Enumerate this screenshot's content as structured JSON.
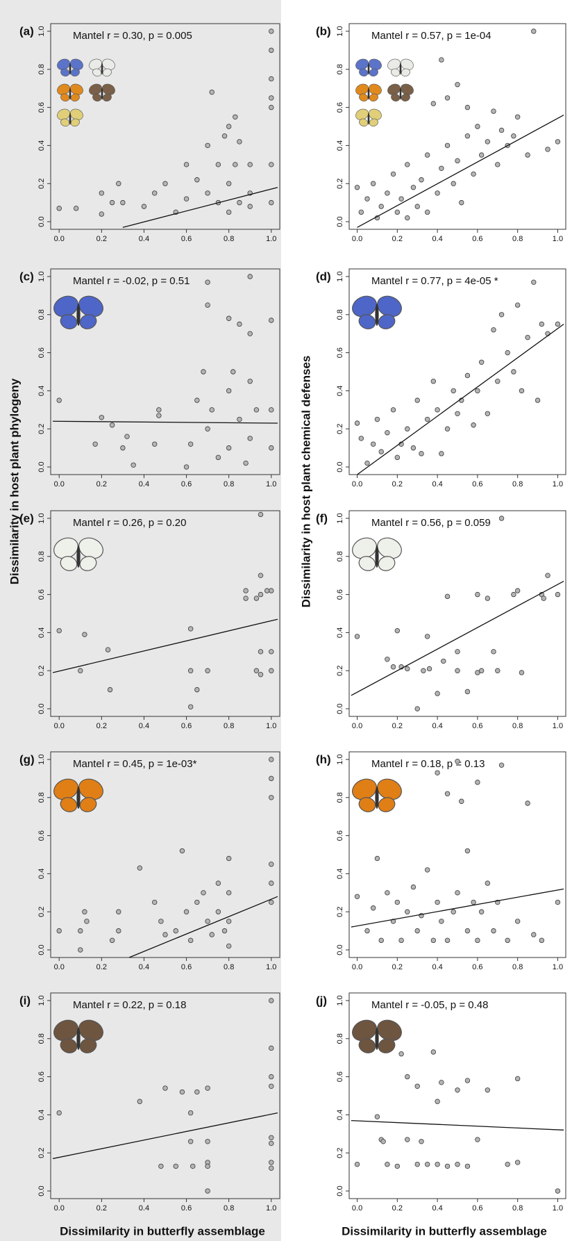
{
  "labels": {
    "y_left": "Dissimilarity in host plant phylogeny",
    "y_right": "Dissimilarity in host plant chemical defenses",
    "x_left": "Dissimilarity in butterfly assemblage",
    "x_right": "Dissimilarity in butterfly assemblage"
  },
  "chart_data": [
    {
      "type": "scatter",
      "panel": "(a)",
      "annotation": "Mantel r = 0.30, p = 0.005",
      "color": "#b5b5b5",
      "x": [
        0,
        0.08,
        0.2,
        0.2,
        0.25,
        0.28,
        0.3,
        0.4,
        0.45,
        0.5,
        0.55,
        0.6,
        0.6,
        0.65,
        0.7,
        0.7,
        0.72,
        0.75,
        0.75,
        0.78,
        0.8,
        0.8,
        0.8,
        0.83,
        0.83,
        0.85,
        0.85,
        0.9,
        0.9,
        1,
        1,
        1,
        1,
        1,
        1,
        1,
        0.9
      ],
      "y": [
        0.07,
        0.07,
        0.15,
        0.04,
        0.1,
        0.2,
        0.1,
        0.08,
        0.15,
        0.2,
        0.05,
        0.3,
        0.12,
        0.22,
        0.4,
        0.15,
        0.68,
        0.3,
        0.1,
        0.45,
        0.5,
        0.2,
        0.05,
        0.55,
        0.3,
        0.42,
        0.1,
        0.3,
        0.15,
        1.0,
        0.9,
        0.75,
        0.65,
        0.6,
        0.3,
        0.1,
        0.08
      ],
      "fit": {
        "x": [
          0.3,
          1.03
        ],
        "y": [
          -0.03,
          0.18
        ]
      }
    },
    {
      "type": "scatter",
      "panel": "(b)",
      "annotation": "Mantel r = 0.57, p = 1e-04",
      "color": "#b5b5b5",
      "x": [
        0,
        0.02,
        0.05,
        0.08,
        0.1,
        0.12,
        0.15,
        0.18,
        0.2,
        0.22,
        0.25,
        0.28,
        0.3,
        0.32,
        0.35,
        0.38,
        0.4,
        0.42,
        0.45,
        0.45,
        0.48,
        0.5,
        0.5,
        0.52,
        0.55,
        0.55,
        0.58,
        0.6,
        0.62,
        0.65,
        0.68,
        0.7,
        0.72,
        0.75,
        0.78,
        0.8,
        0.85,
        0.88,
        0.42,
        0.95,
        1.0,
        0.35,
        0.25
      ],
      "y": [
        0.18,
        0.05,
        0.12,
        0.2,
        0.02,
        0.08,
        0.15,
        0.25,
        0.05,
        0.12,
        0.3,
        0.18,
        0.08,
        0.22,
        0.35,
        0.62,
        0.15,
        0.28,
        0.65,
        0.4,
        0.2,
        0.72,
        0.32,
        0.1,
        0.6,
        0.45,
        0.25,
        0.5,
        0.35,
        0.42,
        0.58,
        0.3,
        0.48,
        0.4,
        0.45,
        0.55,
        0.35,
        1.0,
        0.85,
        0.38,
        0.42,
        0.05,
        0.02
      ],
      "fit": {
        "x": [
          0.0,
          1.03
        ],
        "y": [
          -0.03,
          0.56
        ]
      }
    },
    {
      "type": "scatter",
      "panel": "(c)",
      "annotation": "Mantel r = -0.02, p = 0.51",
      "color": "#b5b5b5",
      "x": [
        0,
        0.17,
        0.2,
        0.25,
        0.3,
        0.32,
        0.35,
        0.45,
        0.47,
        0.47,
        0.6,
        0.62,
        0.65,
        0.68,
        0.7,
        0.7,
        0.7,
        0.72,
        0.75,
        0.8,
        0.8,
        0.8,
        0.82,
        0.85,
        0.85,
        0.88,
        0.9,
        0.9,
        0.9,
        0.9,
        0.93,
        1.0,
        1.0,
        1.0
      ],
      "y": [
        0.35,
        0.12,
        0.26,
        0.22,
        0.1,
        0.16,
        0.01,
        0.12,
        0.3,
        0.27,
        0.0,
        0.12,
        0.35,
        0.5,
        0.97,
        0.85,
        0.2,
        0.3,
        0.05,
        0.78,
        0.4,
        0.1,
        0.5,
        0.75,
        0.25,
        0.02,
        1.0,
        0.7,
        0.45,
        0.15,
        0.3,
        0.77,
        0.3,
        0.1
      ],
      "fit": {
        "x": [
          -0.03,
          1.03
        ],
        "y": [
          0.24,
          0.23
        ]
      }
    },
    {
      "type": "scatter",
      "panel": "(d)",
      "annotation": "Mantel r = 0.77, p = 4e-05 *",
      "color": "#b5b5b5",
      "x": [
        0,
        0.02,
        0.05,
        0.08,
        0.1,
        0.12,
        0.15,
        0.18,
        0.2,
        0.22,
        0.25,
        0.28,
        0.3,
        0.32,
        0.35,
        0.38,
        0.4,
        0.42,
        0.45,
        0.48,
        0.5,
        0.52,
        0.55,
        0.58,
        0.6,
        0.62,
        0.65,
        0.68,
        0.7,
        0.72,
        0.75,
        0.78,
        0.8,
        0.82,
        0.85,
        0.88,
        0.9,
        0.92,
        0.95,
        1.0
      ],
      "y": [
        0.23,
        0.15,
        0.02,
        0.12,
        0.25,
        0.08,
        0.18,
        0.3,
        0.05,
        0.12,
        0.2,
        0.1,
        0.35,
        0.07,
        0.25,
        0.45,
        0.3,
        0.07,
        0.2,
        0.4,
        0.28,
        0.35,
        0.48,
        0.22,
        0.4,
        0.55,
        0.28,
        0.72,
        0.45,
        0.8,
        0.6,
        0.5,
        0.85,
        0.4,
        0.68,
        0.97,
        0.35,
        0.75,
        0.7,
        0.75
      ],
      "fit": {
        "x": [
          0.0,
          1.03
        ],
        "y": [
          -0.04,
          0.75
        ]
      }
    },
    {
      "type": "scatter",
      "panel": "(e)",
      "annotation": "Mantel r = 0.26, p = 0.20",
      "color": "#b5b5b5",
      "x": [
        0,
        0.1,
        0.12,
        0.23,
        0.24,
        0.62,
        0.62,
        0.62,
        0.65,
        0.7,
        0.88,
        0.88,
        0.95,
        0.95,
        0.95,
        0.93,
        0.95,
        0.93,
        0.95,
        1.0,
        1.0,
        1.0,
        0.98
      ],
      "y": [
        0.41,
        0.2,
        0.39,
        0.31,
        0.1,
        0.42,
        0.2,
        0.01,
        0.1,
        0.2,
        0.58,
        0.62,
        1.02,
        0.7,
        0.6,
        0.58,
        0.3,
        0.2,
        0.18,
        0.62,
        0.3,
        0.2,
        0.62
      ],
      "fit": {
        "x": [
          -0.03,
          1.03
        ],
        "y": [
          0.19,
          0.47
        ]
      }
    },
    {
      "type": "scatter",
      "panel": "(f)",
      "annotation": "Mantel r = 0.56, p = 0.059",
      "color": "#b5b5b5",
      "x": [
        0,
        0.15,
        0.18,
        0.2,
        0.22,
        0.25,
        0.3,
        0.33,
        0.35,
        0.36,
        0.4,
        0.43,
        0.45,
        0.5,
        0.5,
        0.55,
        0.6,
        0.6,
        0.62,
        0.65,
        0.68,
        0.7,
        0.72,
        0.78,
        0.8,
        0.82,
        0.92,
        0.93,
        0.95,
        1.0
      ],
      "y": [
        0.38,
        0.26,
        0.22,
        0.41,
        0.22,
        0.21,
        0.0,
        0.2,
        0.38,
        0.21,
        0.08,
        0.25,
        0.59,
        0.3,
        0.2,
        0.09,
        0.6,
        0.19,
        0.2,
        0.58,
        0.3,
        0.2,
        1.0,
        0.6,
        0.62,
        0.19,
        0.6,
        0.58,
        0.7,
        0.6
      ],
      "fit": {
        "x": [
          -0.03,
          1.03
        ],
        "y": [
          0.07,
          0.67
        ]
      }
    },
    {
      "type": "scatter",
      "panel": "(g)",
      "annotation": "Mantel r = 0.45, p = 1e-03*",
      "color": "#b5b5b5",
      "x": [
        0,
        0.1,
        0.12,
        0.13,
        0.1,
        0.25,
        0.28,
        0.28,
        0.38,
        0.45,
        0.48,
        0.5,
        0.55,
        0.58,
        0.6,
        0.62,
        0.65,
        0.68,
        0.7,
        0.72,
        0.75,
        0.75,
        0.78,
        0.8,
        0.8,
        0.8,
        0.8,
        1.0,
        1.0,
        1.0,
        1.0,
        1.0,
        1.0
      ],
      "y": [
        0.1,
        0.1,
        0.2,
        0.15,
        0.0,
        0.05,
        0.2,
        0.1,
        0.43,
        0.25,
        0.15,
        0.08,
        0.1,
        0.52,
        0.2,
        0.05,
        0.25,
        0.3,
        0.15,
        0.08,
        0.35,
        0.2,
        0.1,
        0.48,
        0.3,
        0.15,
        0.02,
        1.0,
        0.9,
        0.8,
        0.45,
        0.35,
        0.25
      ],
      "fit": {
        "x": [
          0.33,
          1.03
        ],
        "y": [
          -0.04,
          0.28
        ]
      }
    },
    {
      "type": "scatter",
      "panel": "(h)",
      "annotation": "Mantel r = 0.18, p = 0.13",
      "color": "#b5b5b5",
      "x": [
        0,
        0.05,
        0.08,
        0.1,
        0.12,
        0.15,
        0.18,
        0.2,
        0.22,
        0.25,
        0.28,
        0.3,
        0.32,
        0.35,
        0.38,
        0.4,
        0.4,
        0.42,
        0.45,
        0.45,
        0.48,
        0.5,
        0.5,
        0.52,
        0.55,
        0.55,
        0.58,
        0.6,
        0.6,
        0.62,
        0.65,
        0.68,
        0.7,
        0.72,
        0.75,
        0.8,
        0.85,
        0.88,
        0.92,
        1.0
      ],
      "y": [
        0.28,
        0.1,
        0.22,
        0.48,
        0.05,
        0.3,
        0.15,
        0.25,
        0.05,
        0.2,
        0.33,
        0.1,
        0.18,
        0.42,
        0.05,
        0.93,
        0.25,
        0.15,
        0.82,
        0.05,
        0.2,
        0.99,
        0.3,
        0.78,
        0.52,
        0.1,
        0.25,
        0.88,
        0.05,
        0.2,
        0.35,
        0.1,
        0.25,
        0.97,
        0.05,
        0.15,
        0.77,
        0.08,
        0.05,
        0.25
      ],
      "fit": {
        "x": [
          -0.03,
          1.03
        ],
        "y": [
          0.12,
          0.32
        ]
      }
    },
    {
      "type": "scatter",
      "panel": "(i)",
      "annotation": "Mantel r = 0.22, p = 0.18",
      "color": "#b5b5b5",
      "x": [
        0,
        0.38,
        0.48,
        0.5,
        0.55,
        0.58,
        0.62,
        0.62,
        0.63,
        0.65,
        0.7,
        0.7,
        0.7,
        0.7,
        0.7,
        1.0,
        1.0,
        1.0,
        1.0,
        1.0,
        1.0,
        1.0,
        1.0
      ],
      "y": [
        0.41,
        0.47,
        0.13,
        0.54,
        0.13,
        0.52,
        0.41,
        0.26,
        0.13,
        0.52,
        0.54,
        0.26,
        0.15,
        0.13,
        0.0,
        1.0,
        0.75,
        0.6,
        0.55,
        0.28,
        0.25,
        0.15,
        0.12
      ],
      "fit": {
        "x": [
          -0.03,
          1.03
        ],
        "y": [
          0.17,
          0.41
        ]
      }
    },
    {
      "type": "scatter",
      "panel": "(j)",
      "annotation": "Mantel r = -0.05, p = 0.48",
      "color": "#b5b5b5",
      "x": [
        0,
        0.1,
        0.12,
        0.13,
        0.15,
        0.2,
        0.22,
        0.25,
        0.25,
        0.3,
        0.3,
        0.32,
        0.35,
        0.38,
        0.4,
        0.4,
        0.42,
        0.45,
        0.5,
        0.5,
        0.55,
        0.55,
        0.6,
        0.65,
        0.75,
        0.8,
        0.8,
        1.0
      ],
      "y": [
        0.14,
        0.39,
        0.27,
        0.26,
        0.14,
        0.13,
        0.72,
        0.6,
        0.27,
        0.14,
        0.55,
        0.26,
        0.14,
        0.73,
        0.14,
        0.47,
        0.57,
        0.13,
        0.53,
        0.14,
        0.13,
        0.58,
        0.27,
        0.53,
        0.14,
        0.59,
        0.15,
        0.0
      ],
      "fit": {
        "x": [
          -0.03,
          1.03
        ],
        "y": [
          0.37,
          0.32
        ]
      }
    }
  ],
  "axes": {
    "xlim": [
      -0.04,
      1.04
    ],
    "ylim": [
      -0.04,
      1.04
    ],
    "xticks": [
      {
        "value": 0,
        "label": "0.0"
      },
      {
        "value": 0.2,
        "label": "0.2"
      },
      {
        "value": 0.4,
        "label": "0.4"
      },
      {
        "value": 0.6,
        "label": "0.6"
      },
      {
        "value": 0.8,
        "label": "0.8"
      },
      {
        "value": 1,
        "label": "1.0"
      }
    ],
    "yticks": [
      {
        "value": 0,
        "label": "0.0"
      },
      {
        "value": 0.2,
        "label": "0.2"
      },
      {
        "value": 0.4,
        "label": "0.4"
      },
      {
        "value": 0.6,
        "label": "0.6"
      },
      {
        "value": 0.8,
        "label": "0.8"
      },
      {
        "value": 1,
        "label": "1.0"
      }
    ]
  }
}
